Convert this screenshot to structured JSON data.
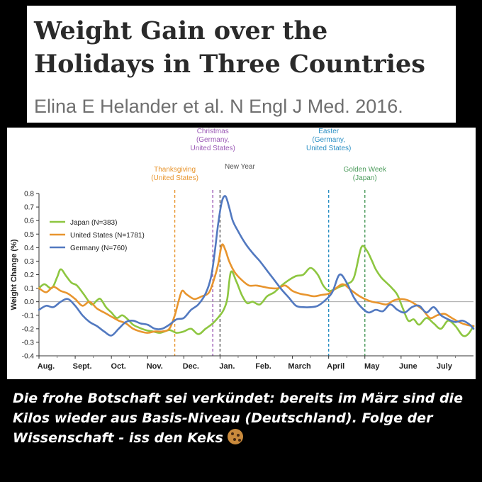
{
  "header": {
    "title": "Weight Gain over the Holidays in Three Countries",
    "citation": "Elina E Helander et al. N Engl J Med. 2016."
  },
  "caption": {
    "text": "Die frohe Botschaft sei verkündet: bereits im März sind die Kilos wieder aus Basis-Niveau (Deutschland). Folge der Wissenschaft - iss den Keks",
    "emoji_icon": "cookie-icon"
  },
  "chart_data": {
    "type": "line",
    "title": "",
    "xlabel": "",
    "ylabel": "Weight Change (%)",
    "x_tick_labels": [
      "Aug.",
      "Sept.",
      "Oct.",
      "Nov.",
      "Dec.",
      "Jan.",
      "Feb.",
      "March",
      "April",
      "May",
      "June",
      "July"
    ],
    "x_range_months": [
      0,
      12
    ],
    "ylim": [
      -0.4,
      0.8
    ],
    "y_ticks": [
      "-0.4",
      "-0.3",
      "-0.2",
      "-0.1",
      "0.0",
      "0.1",
      "0.2",
      "0.3",
      "0.4",
      "0.5",
      "0.6",
      "0.7",
      "0.8"
    ],
    "grid": false,
    "legend_position": "upper-left",
    "series": [
      {
        "name": "Japan (N=383)",
        "color": "#8dc640",
        "x": [
          0,
          0.15,
          0.35,
          0.5,
          0.6,
          0.75,
          0.9,
          1.05,
          1.25,
          1.45,
          1.6,
          1.7,
          1.85,
          2.0,
          2.15,
          2.3,
          2.45,
          2.6,
          2.75,
          2.95,
          3.15,
          3.35,
          3.6,
          3.8,
          4.0,
          4.2,
          4.4,
          4.6,
          4.8,
          5.0,
          5.1,
          5.2,
          5.3,
          5.45,
          5.6,
          5.75,
          5.9,
          6.1,
          6.3,
          6.5,
          6.7,
          6.9,
          7.1,
          7.3,
          7.5,
          7.7,
          7.85,
          8.0,
          8.15,
          8.3,
          8.5,
          8.7,
          8.9,
          9.05,
          9.2,
          9.3,
          9.45,
          9.6,
          9.75,
          9.9,
          10.05,
          10.2,
          10.35,
          10.5,
          10.7,
          10.9,
          11.1,
          11.3,
          11.5,
          11.7,
          11.85,
          12.0
        ],
        "y": [
          0.1,
          0.13,
          0.1,
          0.18,
          0.24,
          0.19,
          0.14,
          0.12,
          0.05,
          -0.02,
          0.01,
          0.02,
          -0.04,
          -0.08,
          -0.12,
          -0.1,
          -0.13,
          -0.17,
          -0.19,
          -0.21,
          -0.22,
          -0.23,
          -0.21,
          -0.23,
          -0.22,
          -0.2,
          -0.24,
          -0.2,
          -0.16,
          -0.1,
          -0.06,
          0.02,
          0.22,
          0.15,
          0.05,
          -0.01,
          0.0,
          -0.02,
          0.04,
          0.07,
          0.12,
          0.16,
          0.19,
          0.2,
          0.25,
          0.2,
          0.12,
          0.08,
          0.09,
          0.11,
          0.13,
          0.18,
          0.4,
          0.38,
          0.3,
          0.24,
          0.18,
          0.14,
          0.1,
          0.05,
          -0.05,
          -0.14,
          -0.13,
          -0.17,
          -0.12,
          -0.16,
          -0.2,
          -0.14,
          -0.18,
          -0.25,
          -0.24,
          -0.18
        ]
      },
      {
        "name": "United States (N=1781)",
        "color": "#e8952e",
        "x": [
          0,
          0.2,
          0.4,
          0.6,
          0.8,
          1.0,
          1.2,
          1.4,
          1.6,
          1.8,
          2.0,
          2.2,
          2.4,
          2.6,
          2.8,
          3.0,
          3.2,
          3.4,
          3.6,
          3.75,
          3.85,
          3.95,
          4.05,
          4.15,
          4.3,
          4.5,
          4.7,
          4.85,
          4.95,
          5.05,
          5.15,
          5.25,
          5.4,
          5.6,
          5.8,
          6.0,
          6.2,
          6.4,
          6.6,
          6.8,
          7.0,
          7.2,
          7.4,
          7.6,
          7.8,
          8.0,
          8.2,
          8.4,
          8.6,
          8.8,
          9.0,
          9.2,
          9.4,
          9.6,
          9.8,
          10.0,
          10.2,
          10.4,
          10.6,
          10.8,
          11.0,
          11.2,
          11.4,
          11.6,
          11.8,
          12.0
        ],
        "y": [
          0.1,
          0.07,
          0.11,
          0.08,
          0.06,
          0.02,
          -0.03,
          0.0,
          -0.05,
          -0.08,
          -0.11,
          -0.14,
          -0.16,
          -0.2,
          -0.22,
          -0.23,
          -0.22,
          -0.22,
          -0.2,
          -0.1,
          0.0,
          0.08,
          0.06,
          0.04,
          0.02,
          0.04,
          0.07,
          0.18,
          0.28,
          0.42,
          0.38,
          0.3,
          0.22,
          0.16,
          0.12,
          0.12,
          0.11,
          0.1,
          0.1,
          0.12,
          0.08,
          0.06,
          0.05,
          0.04,
          0.05,
          0.06,
          0.1,
          0.13,
          0.09,
          0.05,
          0.02,
          0.0,
          -0.01,
          -0.02,
          0.01,
          0.02,
          0.01,
          -0.02,
          -0.06,
          -0.12,
          -0.1,
          -0.09,
          -0.12,
          -0.15,
          -0.17,
          -0.18
        ]
      },
      {
        "name": "Germany (N=760)",
        "color": "#5279c0",
        "x": [
          0,
          0.2,
          0.4,
          0.6,
          0.8,
          1.0,
          1.2,
          1.4,
          1.6,
          1.8,
          2.0,
          2.2,
          2.4,
          2.6,
          2.8,
          3.0,
          3.2,
          3.4,
          3.6,
          3.8,
          4.0,
          4.2,
          4.4,
          4.6,
          4.75,
          4.85,
          4.95,
          5.05,
          5.15,
          5.25,
          5.35,
          5.5,
          5.7,
          5.9,
          6.1,
          6.3,
          6.5,
          6.7,
          6.9,
          7.1,
          7.3,
          7.5,
          7.7,
          7.9,
          8.1,
          8.3,
          8.5,
          8.7,
          8.9,
          9.1,
          9.3,
          9.5,
          9.7,
          9.9,
          10.1,
          10.3,
          10.5,
          10.7,
          10.9,
          11.1,
          11.3,
          11.5,
          11.7,
          11.9,
          12.0
        ],
        "y": [
          -0.06,
          -0.03,
          -0.04,
          0.0,
          0.02,
          -0.03,
          -0.1,
          -0.15,
          -0.18,
          -0.22,
          -0.25,
          -0.2,
          -0.15,
          -0.14,
          -0.16,
          -0.17,
          -0.2,
          -0.2,
          -0.17,
          -0.13,
          -0.12,
          -0.06,
          -0.02,
          0.06,
          0.18,
          0.36,
          0.58,
          0.74,
          0.78,
          0.7,
          0.6,
          0.52,
          0.43,
          0.36,
          0.3,
          0.23,
          0.16,
          0.09,
          0.03,
          -0.03,
          -0.04,
          -0.04,
          -0.03,
          0.01,
          0.07,
          0.2,
          0.14,
          0.03,
          -0.04,
          -0.08,
          -0.06,
          -0.07,
          -0.02,
          -0.06,
          -0.08,
          -0.04,
          -0.03,
          -0.08,
          -0.04,
          -0.1,
          -0.13,
          -0.15,
          -0.14,
          -0.17,
          -0.2
        ]
      }
    ],
    "annotations": [
      {
        "label": "Thanksgiving (United States)",
        "x": 3.75,
        "color": "#e8952e"
      },
      {
        "label": "Christmas (Germany, United States)",
        "x": 4.8,
        "color": "#9b59b6"
      },
      {
        "label": "New Year",
        "x": 5.0,
        "color": "#555555"
      },
      {
        "label": "Easter (Germany, United States)",
        "x": 8.0,
        "color": "#2a8fc4"
      },
      {
        "label": "Golden Week (Japan)",
        "x": 9.0,
        "color": "#4a9a5a"
      }
    ]
  }
}
